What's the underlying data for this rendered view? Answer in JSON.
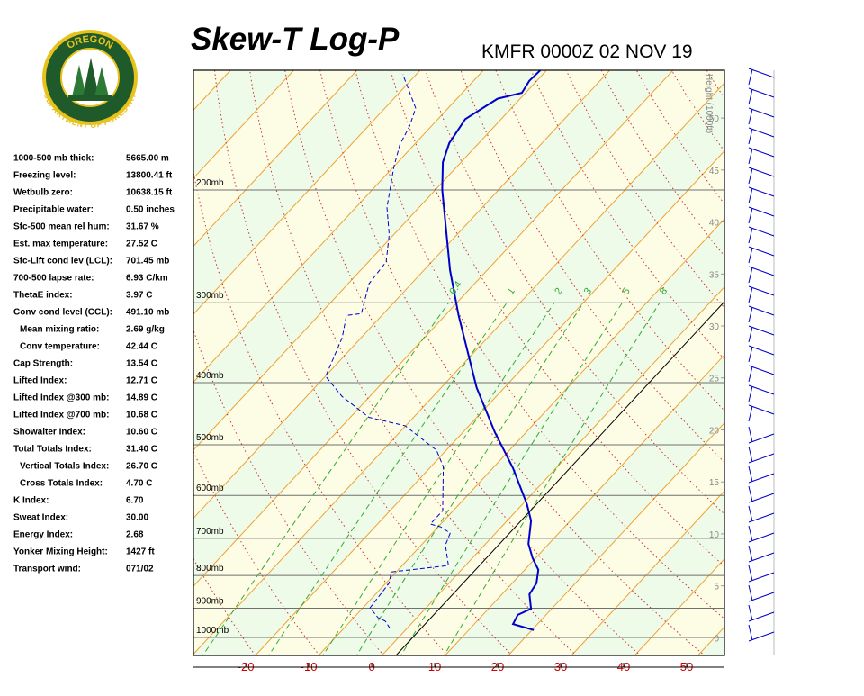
{
  "logo": {
    "top": "OREGON",
    "bottom": "DEPARTMENT OF FORESTRY"
  },
  "indices": [
    {
      "label": "1000-500 mb thick:",
      "value": "5665.00 m",
      "indent": false
    },
    {
      "label": "Freezing level:",
      "value": "13800.41 ft",
      "indent": false
    },
    {
      "label": "Wetbulb zero:",
      "value": "10638.15 ft",
      "indent": false
    },
    {
      "label": "Precipitable water:",
      "value": "0.50 inches",
      "indent": false
    },
    {
      "label": "Sfc-500 mean rel hum:",
      "value": "31.67 %",
      "indent": false
    },
    {
      "label": "Est. max temperature:",
      "value": "27.52 C",
      "indent": false
    },
    {
      "label": "Sfc-Lift cond lev (LCL):",
      "value": "701.45 mb",
      "indent": false
    },
    {
      "label": "700-500 lapse rate:",
      "value": "6.93 C/km",
      "indent": false
    },
    {
      "label": "ThetaE index:",
      "value": "3.97 C",
      "indent": false
    },
    {
      "label": "Conv cond level (CCL):",
      "value": "491.10 mb",
      "indent": false
    },
    {
      "label": "Mean mixing ratio:",
      "value": "2.69 g/kg",
      "indent": true
    },
    {
      "label": "Conv temperature:",
      "value": "42.44 C",
      "indent": true
    },
    {
      "label": "Cap Strength:",
      "value": "13.54 C",
      "indent": false
    },
    {
      "label": "Lifted Index:",
      "value": "12.71 C",
      "indent": false
    },
    {
      "label": "Lifted Index @300 mb:",
      "value": "14.89 C",
      "indent": false
    },
    {
      "label": "Lifted Index @700 mb:",
      "value": "10.68 C",
      "indent": false
    },
    {
      "label": "Showalter Index:",
      "value": "10.60 C",
      "indent": false
    },
    {
      "label": "Total Totals Index:",
      "value": "31.40 C",
      "indent": false
    },
    {
      "label": "Vertical Totals Index:",
      "value": "26.70 C",
      "indent": true
    },
    {
      "label": "Cross Totals Index:",
      "value": "4.70 C",
      "indent": true
    },
    {
      "label": "K Index:",
      "value": "6.70",
      "indent": false
    },
    {
      "label": "Sweat Index:",
      "value": "30.00",
      "indent": false
    },
    {
      "label": "Energy Index:",
      "value": "2.68",
      "indent": false
    },
    {
      "label": "Yonker Mixing Height:",
      "value": "1427 ft",
      "indent": false
    },
    {
      "label": "Transport wind:",
      "value": "071/02",
      "indent": false
    }
  ],
  "chart_data": {
    "type": "skewt",
    "title": "Skew-T Log-P",
    "subtitle": "KMFR 0000Z 02 NOV 19",
    "xlim": [
      -28.3,
      56
    ],
    "xticks": [
      -20,
      -10,
      0,
      10,
      20,
      30,
      40,
      50
    ],
    "ylim": [
      1067,
      130
    ],
    "log_y": true,
    "yticks": [
      {
        "value": 1000,
        "label": "1000mb"
      },
      {
        "value": 900,
        "label": "900mb"
      },
      {
        "value": 800,
        "label": "800mb"
      },
      {
        "value": 700,
        "label": "700mb"
      },
      {
        "value": 600,
        "label": "600mb"
      },
      {
        "value": 500,
        "label": "500mb"
      },
      {
        "value": 400,
        "label": "400mb"
      },
      {
        "value": 300,
        "label": "300mb"
      },
      {
        "value": 200,
        "label": "200mb"
      }
    ],
    "y2label": "Height (1000ft)",
    "y2lim": [
      -1.7,
      54.6
    ],
    "y2ticks": [
      0,
      5,
      10,
      15,
      20,
      25,
      30,
      35,
      40,
      45,
      50
    ],
    "grid": true,
    "mixing_ratios": {
      "values": [
        0.4,
        1,
        2,
        3,
        5,
        8
      ],
      "color": "#33aa33"
    },
    "series": [
      {
        "color": "#0000cc",
        "dashed": false,
        "pressure": [
          974,
          953,
          922,
          902,
          856,
          823,
          784,
          752,
          714,
          657,
          619,
          544,
          478,
          407,
          314,
          267,
          200,
          181,
          169,
          155,
          144,
          141,
          135,
          130
        ],
        "temperature": [
          22.0,
          17.8,
          17.2,
          18.4,
          16.0,
          15.5,
          13.8,
          11.2,
          8.4,
          5.4,
          2.3,
          -5.2,
          -13.4,
          -22.9,
          -36.4,
          -44.4,
          -57.5,
          -61.5,
          -63.3,
          -64.3,
          -62.2,
          -59.2,
          -59.8,
          -59.6
        ]
      },
      {
        "color": "#0000cc",
        "dashed": true,
        "pressure": [
          968,
          943,
          931,
          899,
          823,
          790,
          772,
          717,
          687,
          672,
          665,
          634,
          541,
          510,
          467,
          453,
          420,
          391,
          340,
          314,
          312,
          280,
          259,
          235,
          213,
          184,
          170,
          159,
          149,
          140,
          132
        ],
        "temperature": [
          -1.1,
          -2.9,
          -4.6,
          -7.3,
          -7.9,
          -9.2,
          -1.1,
          -4.6,
          -5.6,
          -8.0,
          -10.1,
          -10.1,
          -16.5,
          -20.0,
          -28.6,
          -35.6,
          -43.0,
          -48.5,
          -51.6,
          -54.2,
          -52.1,
          -55.3,
          -55.8,
          -59.3,
          -63.7,
          -68.6,
          -70.9,
          -72.1,
          -73.8,
          -77.4,
          -80.8
        ]
      }
    ]
  }
}
